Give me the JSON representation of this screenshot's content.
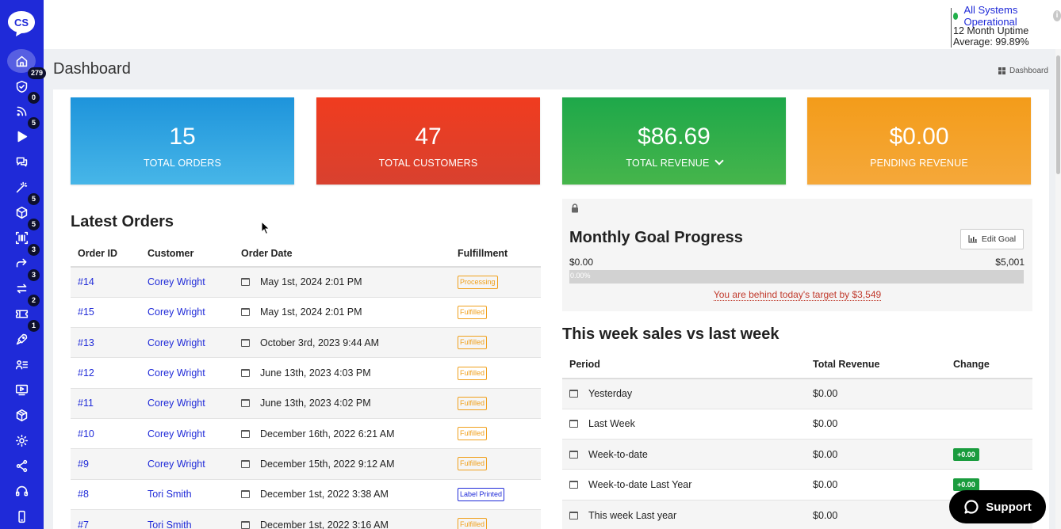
{
  "sidebar": {
    "logo": "CS",
    "items": [
      {
        "icon": "home-icon",
        "badge": ""
      },
      {
        "icon": "shield-check-icon",
        "badge": "279"
      },
      {
        "icon": "rss-icon",
        "badge": "0"
      },
      {
        "icon": "play-icon",
        "badge": "5"
      },
      {
        "icon": "chat-bubbles-icon",
        "badge": ""
      },
      {
        "icon": "magic-wand-icon",
        "badge": ""
      },
      {
        "icon": "box-icon",
        "badge": "5"
      },
      {
        "icon": "barcode-scan-icon",
        "badge": "5"
      },
      {
        "icon": "forward-arrow-icon",
        "badge": "3"
      },
      {
        "icon": "exchange-icon",
        "badge": "3"
      },
      {
        "icon": "ticket-icon",
        "badge": "2"
      },
      {
        "icon": "rocket-icon",
        "badge": "1"
      },
      {
        "icon": "users-list-icon",
        "badge": ""
      },
      {
        "icon": "video-screen-icon",
        "badge": ""
      },
      {
        "icon": "cube-icon",
        "badge": ""
      },
      {
        "icon": "gear-icon",
        "badge": ""
      },
      {
        "icon": "share-nodes-icon",
        "badge": ""
      },
      {
        "icon": "headset-icon",
        "badge": ""
      },
      {
        "icon": "mobile-icon",
        "badge": ""
      }
    ]
  },
  "header": {
    "status_text": "All Systems Operational",
    "status_color": "#22b04b",
    "uptime_text": "12 Month Uptime Average: 99.89%"
  },
  "page": {
    "title": "Dashboard",
    "breadcrumb": "Dashboard"
  },
  "stats": {
    "orders": {
      "value": "15",
      "label": "TOTAL ORDERS"
    },
    "customers": {
      "value": "47",
      "label": "TOTAL CUSTOMERS"
    },
    "revenue": {
      "value": "$86.69",
      "label": "TOTAL REVENUE"
    },
    "pending": {
      "value": "$0.00",
      "label": "PENDING REVENUE"
    }
  },
  "orders": {
    "title": "Latest Orders",
    "headers": {
      "id": "Order ID",
      "customer": "Customer",
      "date": "Order Date",
      "fulfillment": "Fulfillment"
    },
    "rows": [
      {
        "id": "#14",
        "customer": "Corey Wright",
        "date": "May 1st, 2024 2:01 PM",
        "status": "Processing",
        "status_style": "orange"
      },
      {
        "id": "#15",
        "customer": "Corey Wright",
        "date": "May 1st, 2024 2:01 PM",
        "status": "Fulfilled",
        "status_style": "orange"
      },
      {
        "id": "#13",
        "customer": "Corey Wright",
        "date": "October 3rd, 2023 9:44 AM",
        "status": "Fulfilled",
        "status_style": "orange"
      },
      {
        "id": "#12",
        "customer": "Corey Wright",
        "date": "June 13th, 2023 4:03 PM",
        "status": "Fulfilled",
        "status_style": "orange"
      },
      {
        "id": "#11",
        "customer": "Corey Wright",
        "date": "June 13th, 2023 4:02 PM",
        "status": "Fulfilled",
        "status_style": "orange"
      },
      {
        "id": "#10",
        "customer": "Corey Wright",
        "date": "December 16th, 2022 6:21 AM",
        "status": "Fulfilled",
        "status_style": "orange"
      },
      {
        "id": "#9",
        "customer": "Corey Wright",
        "date": "December 15th, 2022 9:12 AM",
        "status": "Fulfilled",
        "status_style": "orange"
      },
      {
        "id": "#8",
        "customer": "Tori Smith",
        "date": "December 1st, 2022 3:38 AM",
        "status": "Label Printed",
        "status_style": "blue"
      },
      {
        "id": "#7",
        "customer": "Tori Smith",
        "date": "December 1st, 2022 3:16 AM",
        "status": "Fulfilled",
        "status_style": "orange"
      }
    ]
  },
  "goal": {
    "title": "Monthly Goal Progress",
    "edit_label": "Edit Goal",
    "min": "$0.00",
    "max": "$5,001",
    "progress_text": "0.00%",
    "progress": 0.0,
    "warning": "You are behind today's target by $3,549"
  },
  "sales": {
    "title": "This week sales vs last week",
    "headers": {
      "period": "Period",
      "revenue": "Total Revenue",
      "change": "Change"
    },
    "rows": [
      {
        "period": "Yesterday",
        "revenue": "$0.00",
        "change": ""
      },
      {
        "period": "Last Week",
        "revenue": "$0.00",
        "change": ""
      },
      {
        "period": "Week-to-date",
        "revenue": "$0.00",
        "change": "+0.00"
      },
      {
        "period": "Week-to-date Last Year",
        "revenue": "$0.00",
        "change": "+0.00"
      },
      {
        "period": "This week Last year",
        "revenue": "$0.00",
        "change": ""
      }
    ]
  },
  "support": {
    "label": "Support"
  }
}
